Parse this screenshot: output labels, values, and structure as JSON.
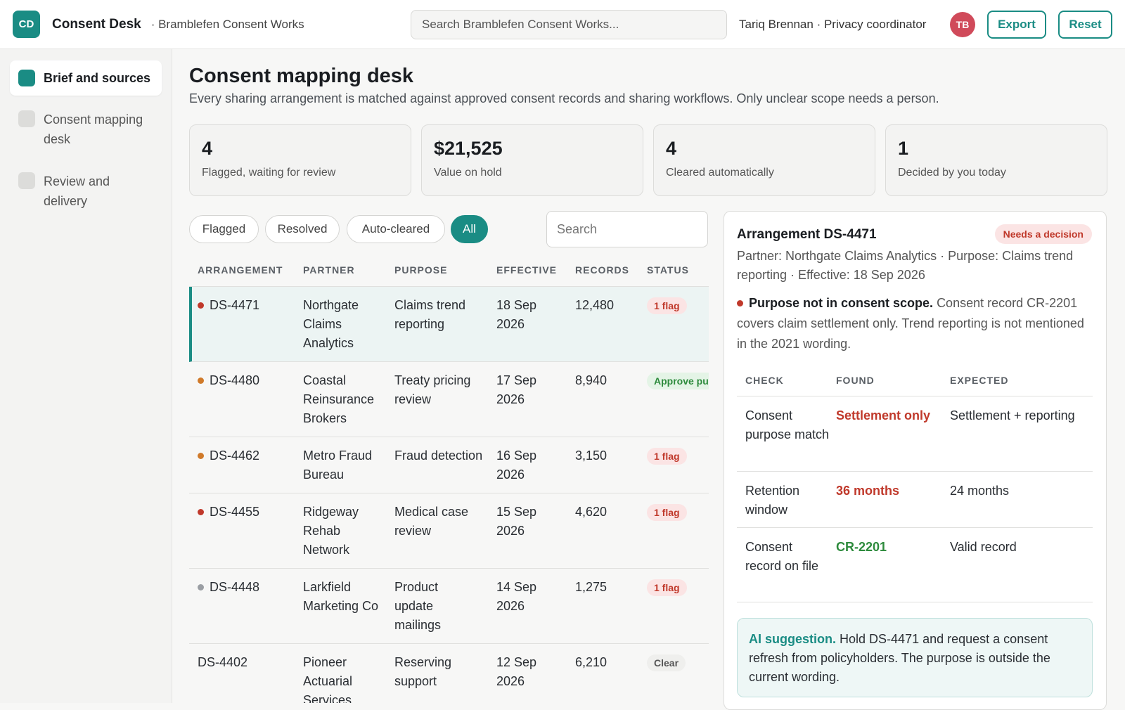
{
  "app": {
    "logo": "CD",
    "title": "Consent Desk",
    "org": "· Bramblefen Consent Works",
    "search_placeholder": "Search Bramblefen Consent Works...",
    "user": "Tariq Brennan · Privacy coordinator",
    "avatar": "TB",
    "export_label": "Export",
    "reset_label": "Reset",
    "accent": "#1a8c84"
  },
  "sidebar": {
    "items": [
      {
        "label": "Brief and sources",
        "active": true
      },
      {
        "label": "Consent mapping desk",
        "active": false
      },
      {
        "label": "Review and delivery",
        "active": false
      }
    ]
  },
  "main": {
    "title": "Consent mapping desk",
    "subtitle": "Every sharing arrangement is matched against approved consent records and sharing workflows. Only unclear scope needs a person.",
    "stats": [
      {
        "value": "4",
        "label": "Flagged, waiting for review"
      },
      {
        "value": "$21,525",
        "label": "Value on hold"
      },
      {
        "value": "4",
        "label": "Cleared automatically"
      },
      {
        "value": "1",
        "label": "Decided by you today"
      }
    ],
    "filters": [
      "Flagged",
      "Resolved",
      "Auto-cleared",
      "All"
    ],
    "active_filter": "All",
    "search_placeholder": "Search"
  },
  "table": {
    "headers": [
      "ARRANGEMENT",
      "PARTNER",
      "PURPOSE",
      "EFFECTIVE",
      "RECORDS",
      "STATUS"
    ],
    "rows": [
      {
        "id": "DS-4471",
        "dot": "#c0392b",
        "partner": "Northgate Claims Analytics",
        "purpose": "Claims trend reporting",
        "effective": "18 Sep 2026",
        "records": "12,480",
        "status": "1 flag",
        "status_type": "flag",
        "selected": true
      },
      {
        "id": "DS-4480",
        "dot": "#d07a2a",
        "partner": "Coastal Reinsurance Brokers",
        "purpose": "Treaty pricing review",
        "effective": "17 Sep 2026",
        "records": "8,940",
        "status": "Approve pu",
        "status_type": "approve",
        "selected": false
      },
      {
        "id": "DS-4462",
        "dot": "#d07a2a",
        "partner": "Metro Fraud Bureau",
        "purpose": "Fraud detection",
        "effective": "16 Sep 2026",
        "records": "3,150",
        "status": "1 flag",
        "status_type": "flag",
        "selected": false
      },
      {
        "id": "DS-4455",
        "dot": "#c0392b",
        "partner": "Ridgeway Rehab Network",
        "purpose": "Medical case review",
        "effective": "15 Sep 2026",
        "records": "4,620",
        "status": "1 flag",
        "status_type": "flag",
        "selected": false
      },
      {
        "id": "DS-4448",
        "dot": "#9a9ea3",
        "partner": "Larkfield Marketing Co",
        "purpose": "Product update mailings",
        "effective": "14 Sep 2026",
        "records": "1,275",
        "status": "1 flag",
        "status_type": "flag",
        "selected": false
      },
      {
        "id": "DS-4402",
        "dot": "",
        "partner": "Pioneer Actuarial Services",
        "purpose": "Reserving support",
        "effective": "12 Sep 2026",
        "records": "6,210",
        "status": "Clear",
        "status_type": "clear",
        "selected": false
      }
    ]
  },
  "detail": {
    "title": "Arrangement DS-4471",
    "badge": "Needs a decision",
    "meta": "Partner: Northgate Claims Analytics · Purpose: Claims trend reporting · Effective: 18 Sep 2026",
    "issue_head": "Purpose not in consent scope.",
    "issue_body": "Consent record CR-2201 covers claim settlement only. Trend reporting is not mentioned in the 2021 wording.",
    "check_headers": [
      "CHECK",
      "FOUND",
      "EXPECTED"
    ],
    "checks": [
      {
        "check": "Consent purpose match",
        "found": "Settlement only",
        "found_type": "red",
        "expected": "Settlement + reporting"
      },
      {
        "check": "Retention window",
        "found": "36 months",
        "found_type": "red",
        "expected": "24 months"
      },
      {
        "check": "Consent record on file",
        "found": "CR-2201",
        "found_type": "green",
        "expected": "Valid record"
      }
    ],
    "ai_head": "AI suggestion.",
    "ai_body": "Hold DS-4471 and request a consent refresh from policyholders. The purpose is outside the current wording."
  }
}
